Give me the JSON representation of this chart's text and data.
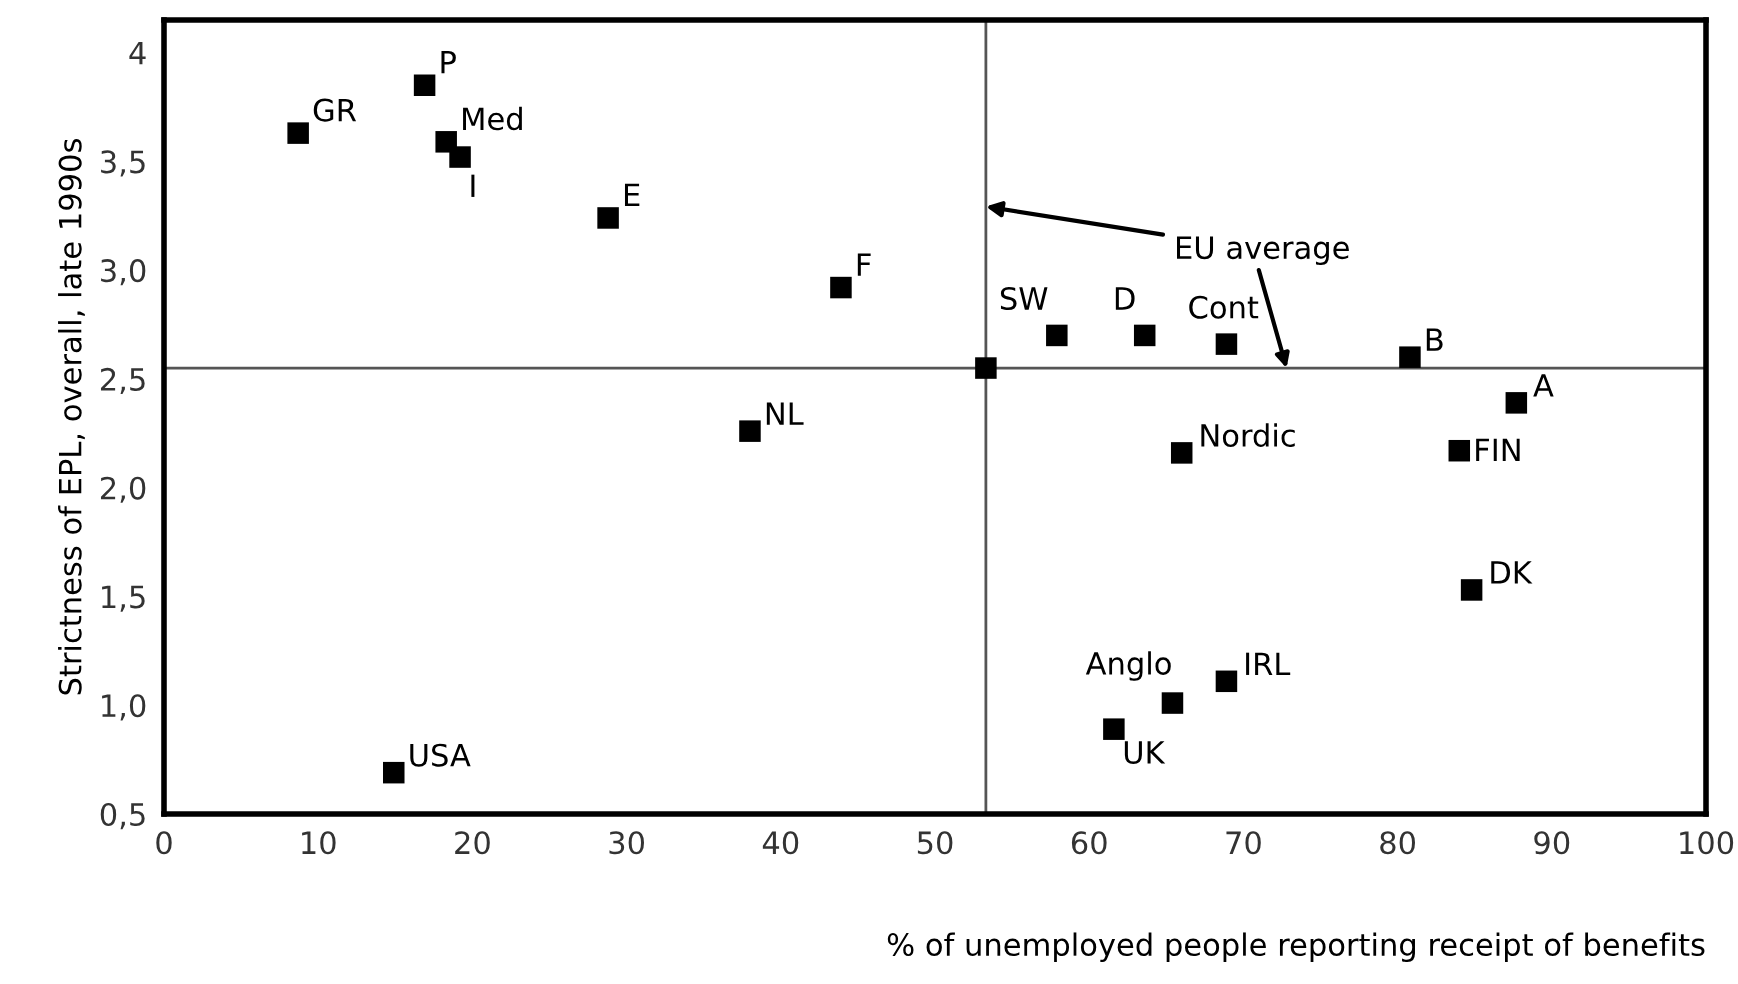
{
  "chart_data": {
    "type": "scatter",
    "xlabel": "% of unemployed people reporting receipt of benefits",
    "ylabel": "Strictness of EPL, overall, late 1990s",
    "x": [
      8.7,
      16.9,
      18.3,
      19.2,
      28.8,
      43.9,
      38.0,
      14.9,
      53.3,
      57.9,
      63.6,
      68.9,
      80.8,
      87.7,
      84.0,
      66.0,
      84.8,
      68.9,
      65.4,
      61.6
    ],
    "series": [
      {
        "color": "#000000",
        "values": [
          3.63,
          3.85,
          3.59,
          3.52,
          3.24,
          2.92,
          2.26,
          0.69,
          2.55,
          2.7,
          2.7,
          2.66,
          2.6,
          2.39,
          2.17,
          2.16,
          1.53,
          1.11,
          1.01,
          0.89
        ],
        "value_labels": [
          "GR",
          "P",
          "Med",
          "I",
          "E",
          "F",
          "NL",
          "USA",
          null,
          "SW",
          "D",
          "Cont",
          "B",
          "A",
          "FIN",
          "Nordic",
          "DK",
          "IRL",
          "Anglo",
          "UK"
        ]
      }
    ],
    "marker": "square",
    "xlim": [
      0,
      100
    ],
    "xticks": [
      0,
      10,
      20,
      30,
      40,
      50,
      60,
      70,
      80,
      90,
      100
    ],
    "ylim": [
      0.5,
      4.15
    ],
    "yticks": [
      {
        "value": 0.5,
        "label": "0,5"
      },
      {
        "value": 1.0,
        "label": "1,0"
      },
      {
        "value": 1.5,
        "label": "1,5"
      },
      {
        "value": 2.0,
        "label": "2,0"
      },
      {
        "value": 2.5,
        "label": "2,5"
      },
      {
        "value": 3.0,
        "label": "3,0"
      },
      {
        "value": 3.5,
        "label": "3,5"
      },
      4
    ],
    "ref_lines": [
      {
        "axis": "x",
        "value": 53.3,
        "label": "EU average",
        "color": "#555555"
      },
      {
        "axis": "y",
        "value": 2.55,
        "color": "#555555"
      }
    ],
    "grid": false
  }
}
